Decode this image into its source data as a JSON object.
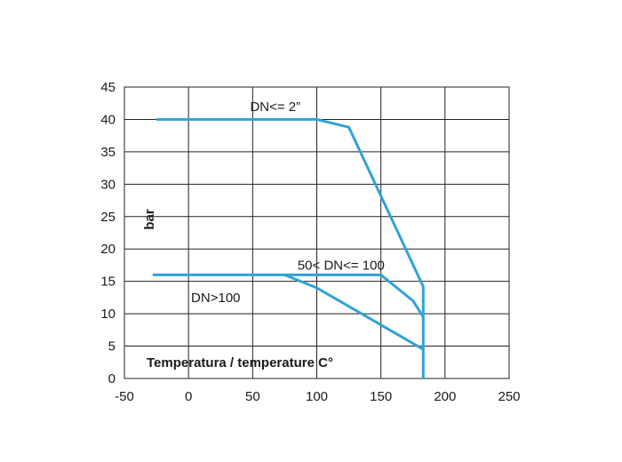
{
  "chart_data": {
    "type": "line",
    "xlabel": "Temperatura / temperature C°",
    "ylabel": "bar",
    "xlim": [
      -50,
      250
    ],
    "ylim": [
      0,
      45
    ],
    "xticks": [
      -50,
      0,
      50,
      100,
      150,
      200,
      250
    ],
    "yticks": [
      0,
      5,
      10,
      15,
      20,
      25,
      30,
      35,
      40,
      45
    ],
    "grid": true,
    "line_color": "#2fa3d6",
    "series": [
      {
        "label": "DN<= 2”",
        "points": [
          [
            -25,
            40
          ],
          [
            100,
            40
          ],
          [
            125,
            38.8
          ],
          [
            183,
            14.2
          ],
          [
            183,
            0
          ]
        ]
      },
      {
        "label": "50< DN<= 100",
        "points": [
          [
            -28,
            16
          ],
          [
            150,
            16
          ],
          [
            175,
            12
          ],
          [
            183,
            9.5
          ]
        ]
      },
      {
        "label": "DN>100",
        "points": [
          [
            75,
            16
          ],
          [
            100,
            14
          ],
          [
            183,
            4.5
          ]
        ]
      }
    ],
    "annotations": [
      {
        "text": "DN<= 2”",
        "x": 48,
        "y": 42
      },
      {
        "text": "50< DN<= 100",
        "x": 85,
        "y": 17.5
      },
      {
        "text": "DN>100",
        "x": 2,
        "y": 12.5
      }
    ]
  }
}
